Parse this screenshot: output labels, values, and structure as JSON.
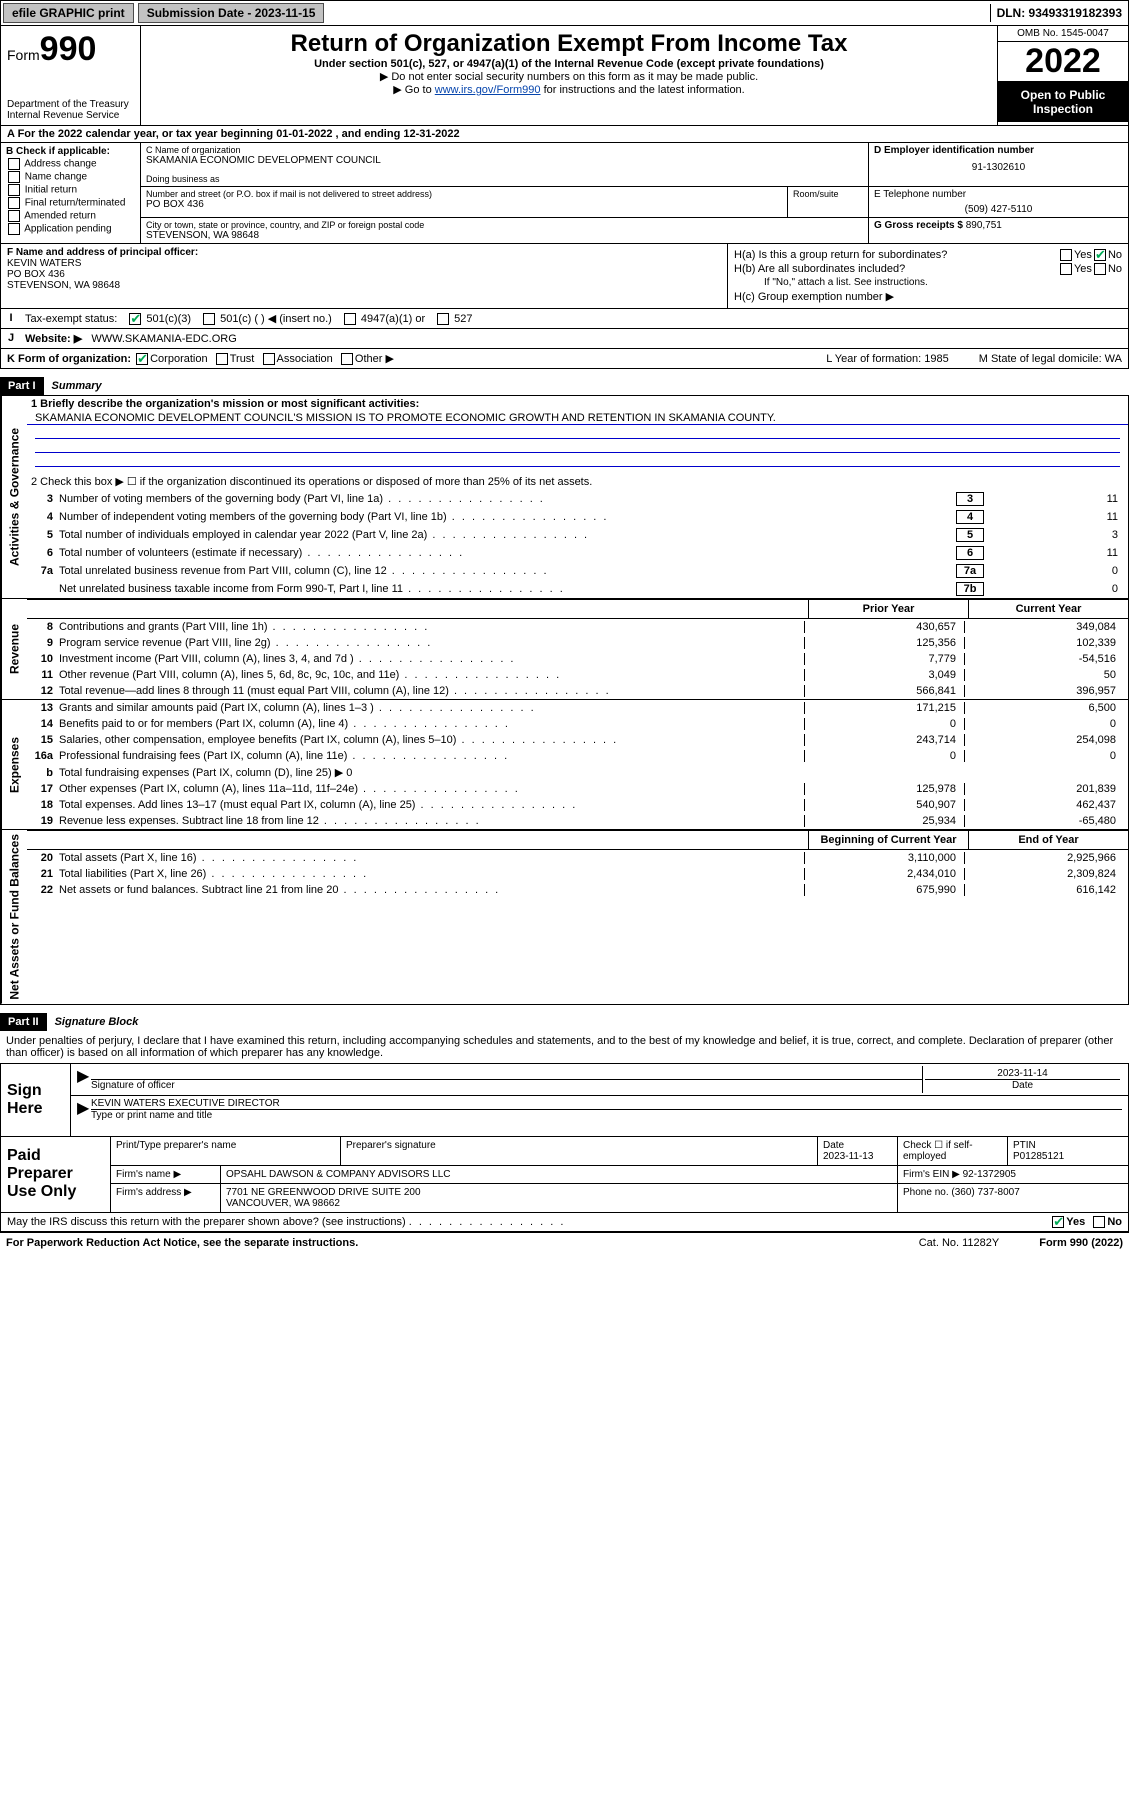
{
  "topbar": {
    "efile": "efile GRAPHIC print",
    "submission_label": "Submission Date - 2023-11-15",
    "dln_label": "DLN: 93493319182393"
  },
  "header": {
    "form_word": "Form",
    "form_num": "990",
    "dept": "Department of the Treasury Internal Revenue Service",
    "title": "Return of Organization Exempt From Income Tax",
    "line1": "Under section 501(c), 527, or 4947(a)(1) of the Internal Revenue Code (except private foundations)",
    "line2": "▶ Do not enter social security numbers on this form as it may be made public.",
    "line3a": "▶ Go to ",
    "line3link": "www.irs.gov/Form990",
    "line3b": " for instructions and the latest information.",
    "omb": "OMB No. 1545-0047",
    "year": "2022",
    "inspect": "Open to Public Inspection"
  },
  "rowA": "A For the 2022 calendar year, or tax year beginning 01-01-2022   , and ending 12-31-2022",
  "colB": {
    "title": "B Check if applicable:",
    "opts": [
      "Address change",
      "Name change",
      "Initial return",
      "Final return/terminated",
      "Amended return",
      "Application pending"
    ]
  },
  "colC": {
    "name_label": "C Name of organization",
    "name": "SKAMANIA ECONOMIC DEVELOPMENT COUNCIL",
    "dba_label": "Doing business as",
    "addr_label": "Number and street (or P.O. box if mail is not delivered to street address)",
    "room_label": "Room/suite",
    "addr": "PO BOX 436",
    "city_label": "City or town, state or province, country, and ZIP or foreign postal code",
    "city": "STEVENSON, WA  98648"
  },
  "colD": {
    "ein_label": "D Employer identification number",
    "ein": "91-1302610",
    "tel_label": "E Telephone number",
    "tel": "(509) 427-5110",
    "gross_label": "G Gross receipts $",
    "gross": "890,751"
  },
  "rowF": {
    "label": "F Name and address of principal officer:",
    "name": "KEVIN WATERS",
    "addr1": "PO BOX 436",
    "addr2": "STEVENSON, WA  98648"
  },
  "rowH": {
    "ha": "H(a)  Is this a group return for subordinates?",
    "hb": "H(b)  Are all subordinates included?",
    "hbnote": "If \"No,\" attach a list. See instructions.",
    "hc": "H(c)  Group exemption number ▶",
    "yes": "Yes",
    "no": "No"
  },
  "rowI": {
    "label": "Tax-exempt status:",
    "o1": "501(c)(3)",
    "o2": "501(c) (  ) ◀ (insert no.)",
    "o3": "4947(a)(1) or",
    "o4": "527"
  },
  "rowJ": {
    "label": "Website: ▶",
    "val": "WWW.SKAMANIA-EDC.ORG"
  },
  "rowK": {
    "label": "K Form of organization:",
    "opts": [
      "Corporation",
      "Trust",
      "Association",
      "Other ▶"
    ],
    "L": "L Year of formation: 1985",
    "M": "M State of legal domicile: WA"
  },
  "part1": {
    "hdr": "Part I",
    "title": "Summary"
  },
  "summary": {
    "s1": "1  Briefly describe the organization's mission or most significant activities:",
    "mission": "SKAMANIA ECONOMIC DEVELOPMENT COUNCIL'S MISSION IS TO PROMOTE ECONOMIC GROWTH AND RETENTION IN SKAMANIA COUNTY.",
    "s2": "2  Check this box ▶ ☐  if the organization discontinued its operations or disposed of more than 25% of its net assets.",
    "lines_gov": [
      {
        "n": "3",
        "d": "Number of voting members of the governing body (Part VI, line 1a)",
        "box": "3",
        "v": "11"
      },
      {
        "n": "4",
        "d": "Number of independent voting members of the governing body (Part VI, line 1b)",
        "box": "4",
        "v": "11"
      },
      {
        "n": "5",
        "d": "Total number of individuals employed in calendar year 2022 (Part V, line 2a)",
        "box": "5",
        "v": "3"
      },
      {
        "n": "6",
        "d": "Total number of volunteers (estimate if necessary)",
        "box": "6",
        "v": "11"
      },
      {
        "n": "7a",
        "d": "Total unrelated business revenue from Part VIII, column (C), line 12",
        "box": "7a",
        "v": "0"
      },
      {
        "n": "",
        "d": "Net unrelated business taxable income from Form 990-T, Part I, line 11",
        "box": "7b",
        "v": "0"
      }
    ],
    "hdr_prior": "Prior Year",
    "hdr_curr": "Current Year",
    "rev": [
      {
        "n": "8",
        "d": "Contributions and grants (Part VIII, line 1h)",
        "p": "430,657",
        "c": "349,084"
      },
      {
        "n": "9",
        "d": "Program service revenue (Part VIII, line 2g)",
        "p": "125,356",
        "c": "102,339"
      },
      {
        "n": "10",
        "d": "Investment income (Part VIII, column (A), lines 3, 4, and 7d )",
        "p": "7,779",
        "c": "-54,516"
      },
      {
        "n": "11",
        "d": "Other revenue (Part VIII, column (A), lines 5, 6d, 8c, 9c, 10c, and 11e)",
        "p": "3,049",
        "c": "50"
      },
      {
        "n": "12",
        "d": "Total revenue—add lines 8 through 11 (must equal Part VIII, column (A), line 12)",
        "p": "566,841",
        "c": "396,957"
      }
    ],
    "exp": [
      {
        "n": "13",
        "d": "Grants and similar amounts paid (Part IX, column (A), lines 1–3 )",
        "p": "171,215",
        "c": "6,500"
      },
      {
        "n": "14",
        "d": "Benefits paid to or for members (Part IX, column (A), line 4)",
        "p": "0",
        "c": "0"
      },
      {
        "n": "15",
        "d": "Salaries, other compensation, employee benefits (Part IX, column (A), lines 5–10)",
        "p": "243,714",
        "c": "254,098"
      },
      {
        "n": "16a",
        "d": "Professional fundraising fees (Part IX, column (A), line 11e)",
        "p": "0",
        "c": "0"
      },
      {
        "n": "b",
        "d": "Total fundraising expenses (Part IX, column (D), line 25) ▶ 0",
        "p": "",
        "c": ""
      },
      {
        "n": "17",
        "d": "Other expenses (Part IX, column (A), lines 11a–11d, 11f–24e)",
        "p": "125,978",
        "c": "201,839"
      },
      {
        "n": "18",
        "d": "Total expenses. Add lines 13–17 (must equal Part IX, column (A), line 25)",
        "p": "540,907",
        "c": "462,437"
      },
      {
        "n": "19",
        "d": "Revenue less expenses. Subtract line 18 from line 12",
        "p": "25,934",
        "c": "-65,480"
      }
    ],
    "hdr_beg": "Beginning of Current Year",
    "hdr_end": "End of Year",
    "net": [
      {
        "n": "20",
        "d": "Total assets (Part X, line 16)",
        "p": "3,110,000",
        "c": "2,925,966"
      },
      {
        "n": "21",
        "d": "Total liabilities (Part X, line 26)",
        "p": "2,434,010",
        "c": "2,309,824"
      },
      {
        "n": "22",
        "d": "Net assets or fund balances. Subtract line 21 from line 20",
        "p": "675,990",
        "c": "616,142"
      }
    ],
    "vtab_gov": "Activities & Governance",
    "vtab_rev": "Revenue",
    "vtab_exp": "Expenses",
    "vtab_net": "Net Assets or Fund Balances"
  },
  "part2": {
    "hdr": "Part II",
    "title": "Signature Block"
  },
  "sig": {
    "decl": "Under penalties of perjury, I declare that I have examined this return, including accompanying schedules and statements, and to the best of my knowledge and belief, it is true, correct, and complete. Declaration of preparer (other than officer) is based on all information of which preparer has any knowledge.",
    "sign_here": "Sign Here",
    "sig_officer": "Signature of officer",
    "sig_date": "2023-11-14",
    "date_lbl": "Date",
    "name_title": "KEVIN WATERS  EXECUTIVE DIRECTOR",
    "name_lbl": "Type or print name and title"
  },
  "prep": {
    "title": "Paid Preparer Use Only",
    "h1": "Print/Type preparer's name",
    "h2": "Preparer's signature",
    "h3": "Date",
    "date": "2023-11-13",
    "h4": "Check ☐ if self-employed",
    "h5": "PTIN",
    "ptin": "P01285121",
    "firm_lbl": "Firm's name    ▶",
    "firm": "OPSAHL DAWSON & COMPANY ADVISORS LLC",
    "ein_lbl": "Firm's EIN ▶",
    "ein": "92-1372905",
    "addr_lbl": "Firm's address ▶",
    "addr1": "7701 NE GREENWOOD DRIVE SUITE 200",
    "addr2": "VANCOUVER, WA  98662",
    "phone_lbl": "Phone no.",
    "phone": "(360) 737-8007"
  },
  "discuss": {
    "q": "May the IRS discuss this return with the preparer shown above? (see instructions)",
    "yes": "Yes",
    "no": "No"
  },
  "footer": {
    "f1": "For Paperwork Reduction Act Notice, see the separate instructions.",
    "f2": "Cat. No. 11282Y",
    "f3": "Form 990 (2022)"
  }
}
